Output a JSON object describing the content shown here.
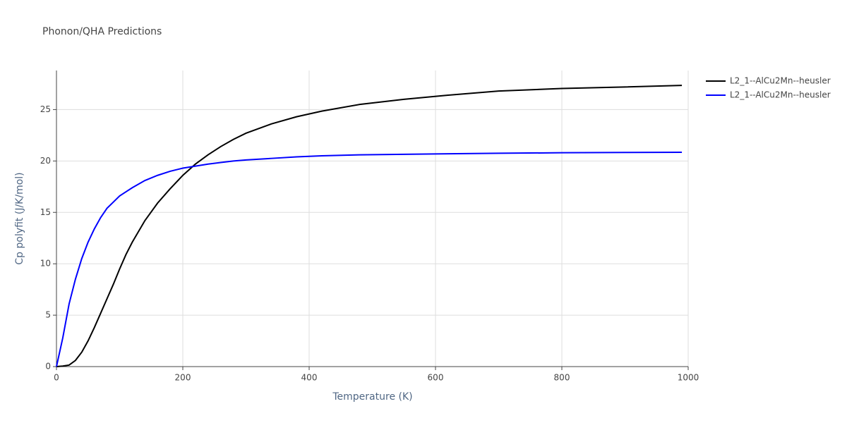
{
  "chart_data": {
    "type": "line",
    "title": "Phonon/QHA Predictions",
    "x_label": "Temperature (K)",
    "y_label": "Cp polyfit (J/K/mol)",
    "x": [
      0,
      10,
      20,
      30,
      40,
      50,
      60,
      70,
      80,
      90,
      100,
      110,
      120,
      140,
      160,
      180,
      200,
      220,
      240,
      260,
      280,
      300,
      340,
      380,
      420,
      480,
      550,
      620,
      700,
      800,
      900,
      990
    ],
    "series": [
      {
        "name": "L2_1--AlCu2Mn--heusler",
        "color": "#000000",
        "values": [
          0,
          0.05,
          0.15,
          0.6,
          1.4,
          2.5,
          3.8,
          5.2,
          6.6,
          8.0,
          9.5,
          10.9,
          12.1,
          14.2,
          15.9,
          17.3,
          18.6,
          19.7,
          20.6,
          21.4,
          22.1,
          22.7,
          23.6,
          24.3,
          24.85,
          25.5,
          26.0,
          26.4,
          26.8,
          27.05,
          27.2,
          27.35
        ]
      },
      {
        "name": "L2_1--AlCu2Mn--heusler",
        "color": "#0000ff",
        "values": [
          0,
          2.8,
          6.1,
          8.5,
          10.5,
          12.1,
          13.4,
          14.5,
          15.4,
          16.0,
          16.6,
          17.0,
          17.4,
          18.1,
          18.6,
          19.0,
          19.3,
          19.5,
          19.7,
          19.85,
          20.0,
          20.1,
          20.25,
          20.4,
          20.5,
          20.6,
          20.65,
          20.7,
          20.75,
          20.8,
          20.83,
          20.85
        ]
      }
    ],
    "xlim": [
      0,
      1000
    ],
    "xticks": [
      0,
      200,
      400,
      600,
      800,
      1000
    ],
    "ylim": [
      0,
      28.8
    ],
    "yticks": [
      0,
      5,
      10,
      15,
      20,
      25
    ],
    "grid": true,
    "legend": "top-right"
  }
}
